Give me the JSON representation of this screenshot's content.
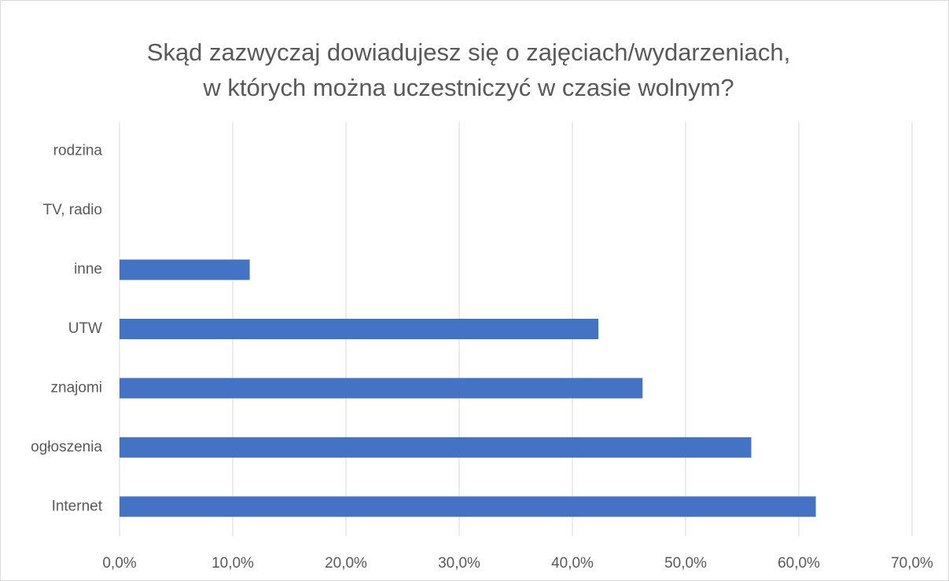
{
  "chart_data": {
    "type": "bar",
    "orientation": "horizontal",
    "title": [
      "Skąd zazwyczaj dowiadujesz się o zajęciach/wydarzeniach,",
      "w których można uczestniczyć w czasie wolnym?"
    ],
    "categories": [
      "rodzina",
      "TV, radio",
      "inne",
      "UTW",
      "znajomi",
      "ogłoszenia",
      "Internet"
    ],
    "values": [
      0,
      0,
      11.5,
      42.3,
      46.2,
      55.8,
      61.5
    ],
    "color": "#4472c4",
    "xlim": [
      0,
      70
    ],
    "xticks": [
      {
        "value": 0,
        "label": "0,0%"
      },
      {
        "value": 10,
        "label": "10,0%"
      },
      {
        "value": 20,
        "label": "20,0%"
      },
      {
        "value": 30,
        "label": "30,0%"
      },
      {
        "value": 40,
        "label": "40,0%"
      },
      {
        "value": 50,
        "label": "50,0%"
      },
      {
        "value": 60,
        "label": "60,0%"
      },
      {
        "value": 70,
        "label": "70,0%"
      }
    ],
    "grid": true
  }
}
